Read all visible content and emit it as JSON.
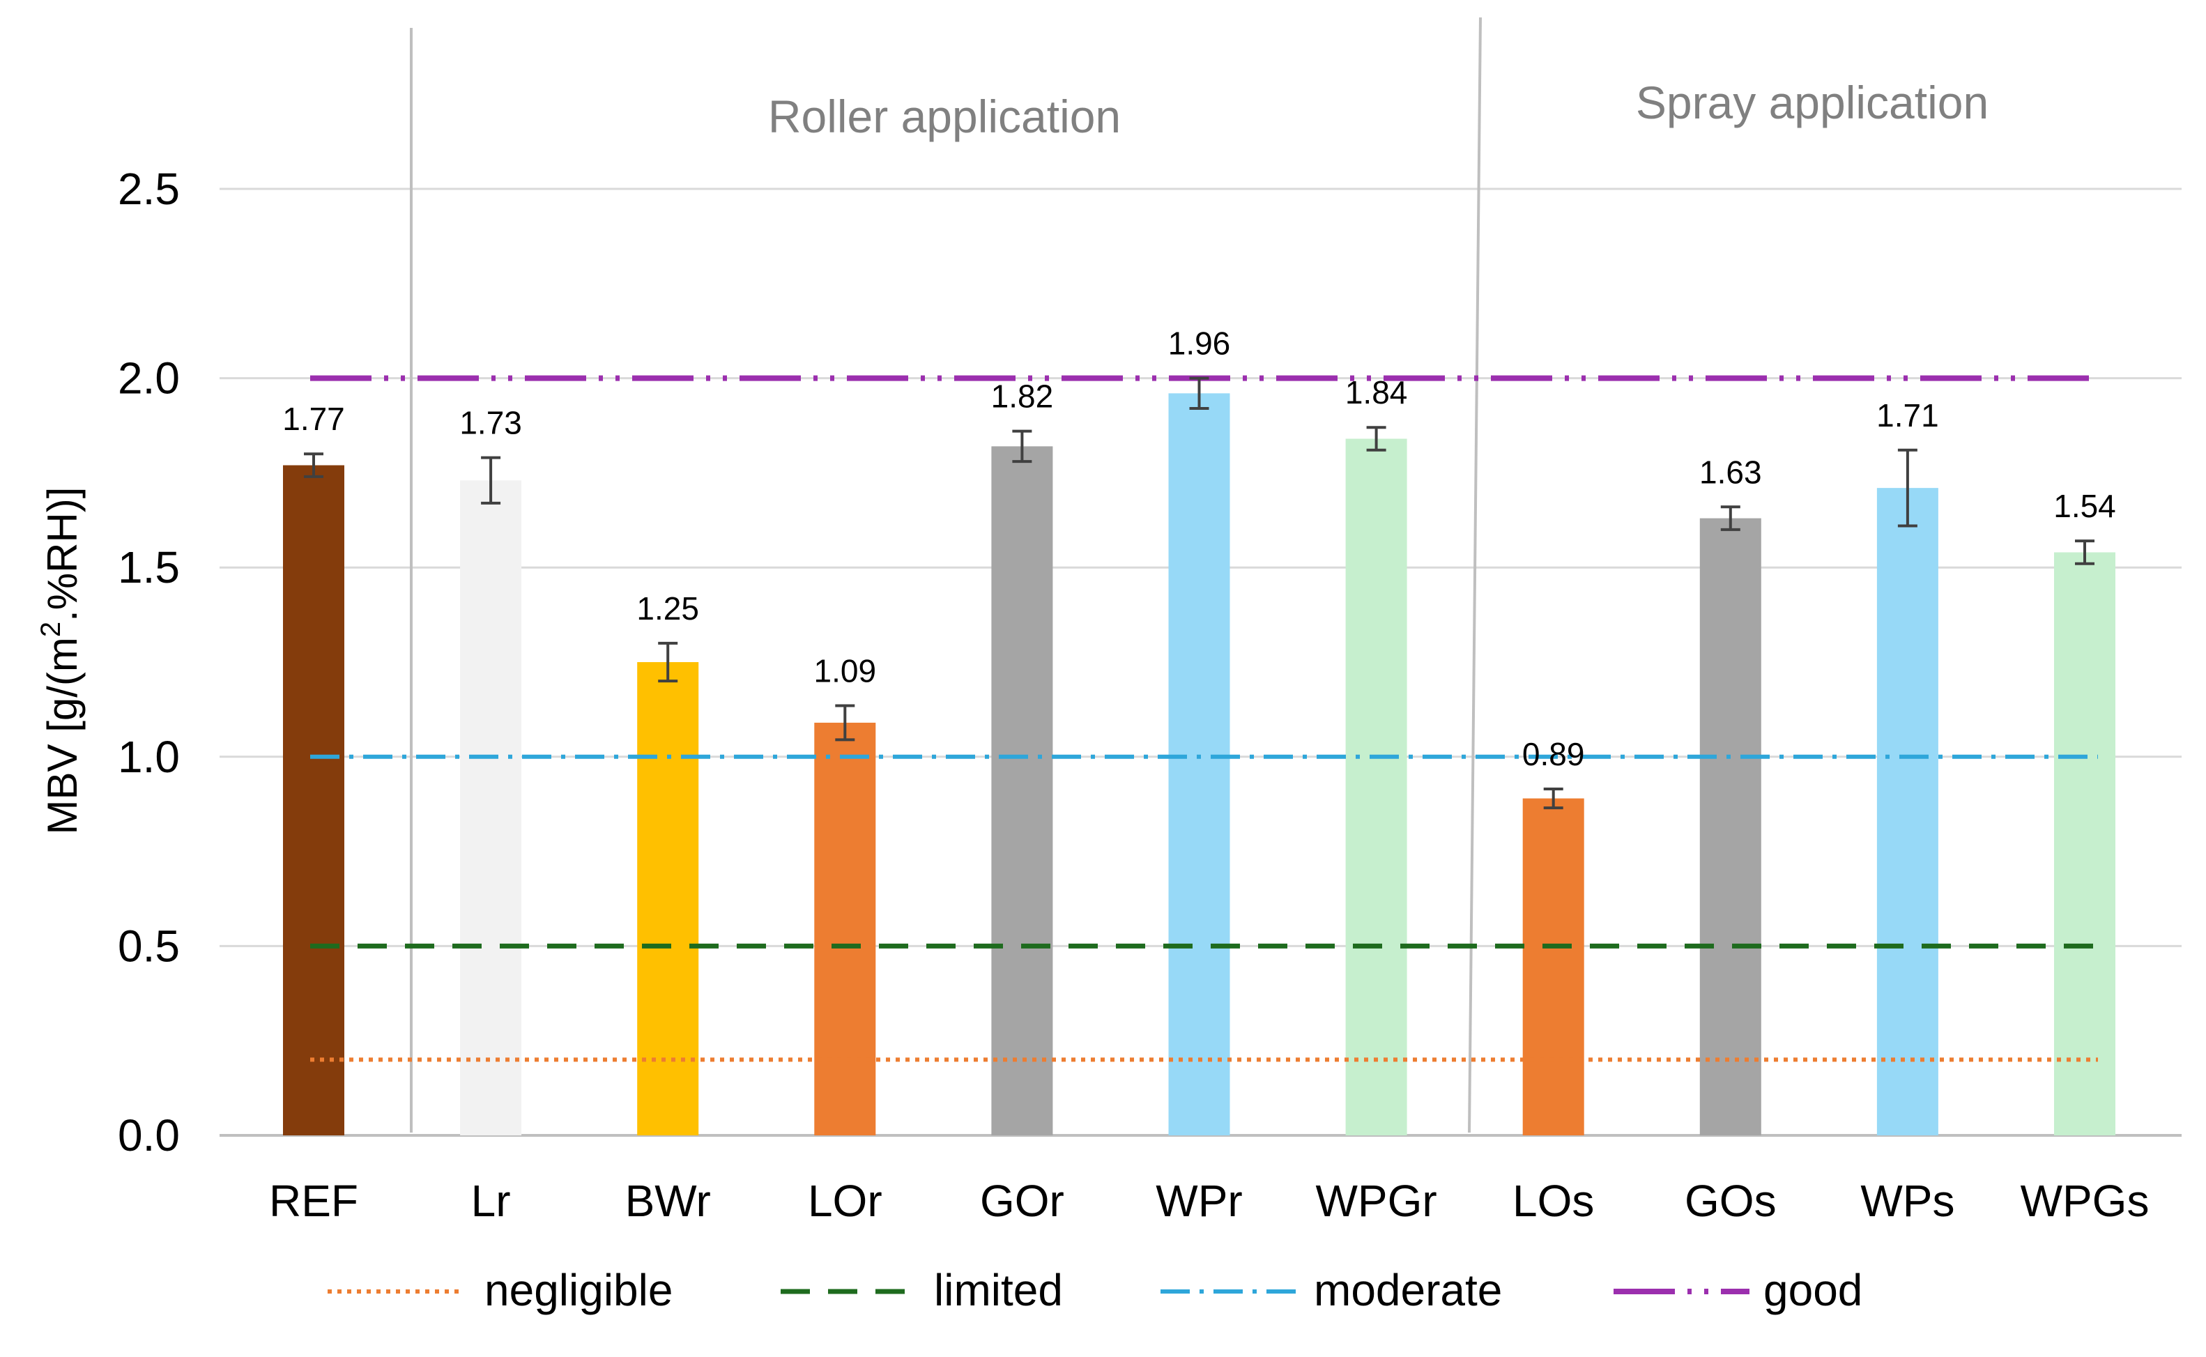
{
  "chart_data": {
    "type": "bar",
    "ylabel": "MBV [g/(m2.%RH)]",
    "ylabel_prefix": "MBV [g/(m",
    "ylabel_sup": "2",
    "ylabel_suffix": ".%RH)]",
    "ylim": [
      0,
      2.5
    ],
    "yticks": [
      "0.0",
      "0.5",
      "1.0",
      "1.5",
      "2.0",
      "2.5"
    ],
    "ytick_values": [
      0,
      0.5,
      1.0,
      1.5,
      2.0,
      2.5
    ],
    "grid": true,
    "categories": [
      "REF",
      "Lr",
      "BWr",
      "LOr",
      "GOr",
      "WPr",
      "WPGr",
      "LOs",
      "GOs",
      "WPs",
      "WPGs"
    ],
    "values": [
      1.77,
      1.73,
      1.25,
      1.09,
      1.82,
      1.96,
      1.84,
      0.89,
      1.63,
      1.71,
      1.54
    ],
    "value_labels": [
      "1.77",
      "1.73",
      "1.25",
      "1.09",
      "1.82",
      "1.96",
      "1.84",
      "0.89",
      "1.63",
      "1.71",
      "1.54"
    ],
    "errors": [
      0.03,
      0.06,
      0.05,
      0.045,
      0.04,
      0.04,
      0.03,
      0.025,
      0.03,
      0.1,
      0.03
    ],
    "colors": [
      "#843C0C",
      "#F2F2F2",
      "#FFC000",
      "#ED7D31",
      "#A5A5A5",
      "#97D9F7",
      "#C6EFCE",
      "#ED7D31",
      "#A5A5A5",
      "#97D9F7",
      "#C6EFCE"
    ],
    "groups": [
      {
        "label": "Roller application",
        "start": 1,
        "end": 6
      },
      {
        "label": "Spray application",
        "start": 7,
        "end": 10
      }
    ],
    "thresholds": [
      {
        "name": "negligible",
        "value": 0.2,
        "color": "#ED7D31",
        "style": "dotted"
      },
      {
        "name": "limited",
        "value": 0.5,
        "color": "#1E6B1E",
        "style": "dashed"
      },
      {
        "name": "moderate",
        "value": 1.0,
        "color": "#2EA6DA",
        "style": "dash-dot"
      },
      {
        "name": "good",
        "value": 2.0,
        "color": "#9B2FAE",
        "style": "long-dash-dot-dot"
      }
    ],
    "legend_position": "bottom"
  }
}
